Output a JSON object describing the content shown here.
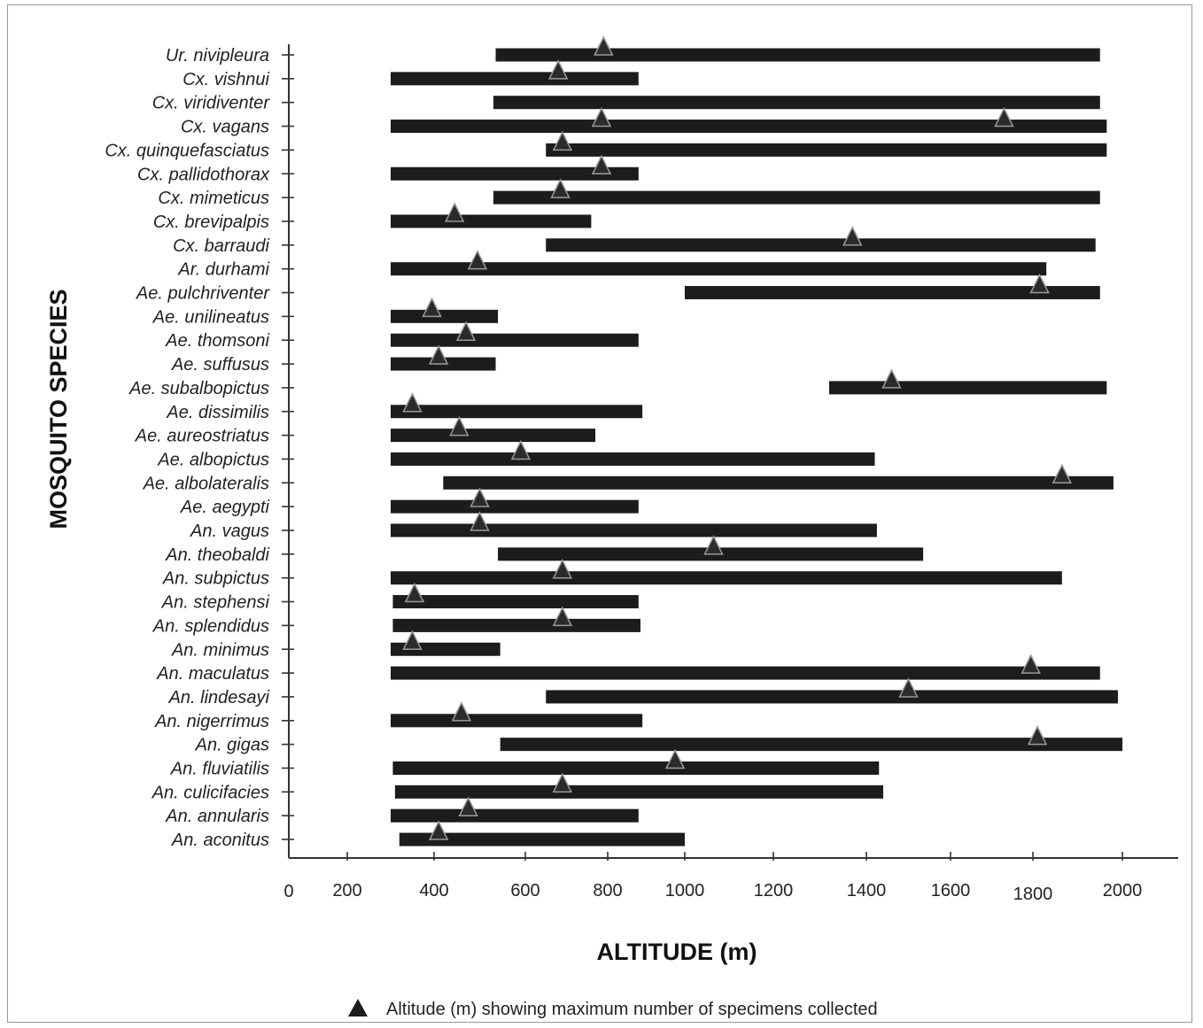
{
  "chart_data": {
    "type": "range-bar",
    "xlabel": "ALTITUDE (m)",
    "ylabel": "MOSQUITO SPECIES",
    "x_ticks": [
      0,
      200,
      400,
      600,
      800,
      1000,
      1200,
      1400,
      1600,
      1800,
      2000
    ],
    "legend": {
      "symbol": "triangle",
      "label": "Altitude (m) showing maximum number of specimens collected",
      "position": "bottom"
    },
    "colors": {
      "bar": "#1c1c1c",
      "marker": "#2b2b2b",
      "axis": "#333333"
    },
    "series": [
      {
        "species": "Ur. nivipleura",
        "min": 535,
        "max": 1950,
        "peaks": [
          790
        ]
      },
      {
        "species": "Cx. vishnui",
        "min": 300,
        "max": 880,
        "peaks": [
          680
        ]
      },
      {
        "species": "Cx. viridiventer",
        "min": 530,
        "max": 1950,
        "peaks": []
      },
      {
        "species": "Cx. vagans",
        "min": 300,
        "max": 1965,
        "peaks": [
          785,
          1730
        ]
      },
      {
        "species": "Cx. quinquefasciatus",
        "min": 650,
        "max": 1965,
        "peaks": [
          690
        ]
      },
      {
        "species": "Cx. pallidothorax",
        "min": 300,
        "max": 880,
        "peaks": [
          785
        ]
      },
      {
        "species": "Cx. mimeticus",
        "min": 530,
        "max": 1950,
        "peaks": [
          685
        ]
      },
      {
        "species": "Cx. brevipalpis",
        "min": 300,
        "max": 760,
        "peaks": [
          445
        ]
      },
      {
        "species": "Cx. barraudi",
        "min": 650,
        "max": 1940,
        "peaks": [
          1370
        ]
      },
      {
        "species": "Ar. durhami",
        "min": 300,
        "max": 1830,
        "peaks": [
          495
        ]
      },
      {
        "species": "Ae. pulchriventer",
        "min": 1000,
        "max": 1950,
        "peaks": [
          1815
        ]
      },
      {
        "species": "Ae. unilineatus",
        "min": 300,
        "max": 540,
        "peaks": [
          395
        ]
      },
      {
        "species": "Ae. thomsoni",
        "min": 300,
        "max": 880,
        "peaks": [
          470
        ]
      },
      {
        "species": "Ae. suffusus",
        "min": 300,
        "max": 535,
        "peaks": [
          410
        ]
      },
      {
        "species": "Ae. subalbopictus",
        "min": 1320,
        "max": 1965,
        "peaks": [
          1460
        ]
      },
      {
        "species": "Ae. dissimilis",
        "min": 300,
        "max": 890,
        "peaks": [
          350
        ]
      },
      {
        "species": "Ae. aureostriatus",
        "min": 300,
        "max": 770,
        "peaks": [
          455
        ]
      },
      {
        "species": "Ae. albopictus",
        "min": 300,
        "max": 1420,
        "peaks": [
          590
        ]
      },
      {
        "species": "Ae. albolateralis",
        "min": 420,
        "max": 1980,
        "peaks": [
          1865
        ]
      },
      {
        "species": "Ae. aegypti",
        "min": 300,
        "max": 880,
        "peaks": [
          500
        ]
      },
      {
        "species": "An. vagus",
        "min": 300,
        "max": 1425,
        "peaks": [
          500
        ]
      },
      {
        "species": "An. theobaldi",
        "min": 540,
        "max": 1535,
        "peaks": [
          1065
        ]
      },
      {
        "species": "An. subpictus",
        "min": 300,
        "max": 1865,
        "peaks": [
          690
        ]
      },
      {
        "species": "An. stephensi",
        "min": 305,
        "max": 880,
        "peaks": [
          355
        ]
      },
      {
        "species": "An. splendidus",
        "min": 305,
        "max": 885,
        "peaks": [
          690
        ]
      },
      {
        "species": "An. minimus",
        "min": 300,
        "max": 545,
        "peaks": [
          350
        ]
      },
      {
        "species": "An. maculatus",
        "min": 300,
        "max": 1950,
        "peaks": [
          1795
        ]
      },
      {
        "species": "An. lindesayi",
        "min": 650,
        "max": 1990,
        "peaks": [
          1500
        ]
      },
      {
        "species": "An. nigerrimus",
        "min": 300,
        "max": 890,
        "peaks": [
          460
        ]
      },
      {
        "species": "An. gigas",
        "min": 545,
        "max": 2000,
        "peaks": [
          1810
        ]
      },
      {
        "species": "An. fluviatilis",
        "min": 305,
        "max": 1430,
        "peaks": [
          975
        ]
      },
      {
        "species": "An. culicifacies",
        "min": 310,
        "max": 1440,
        "peaks": [
          690
        ]
      },
      {
        "species": "An. annularis",
        "min": 300,
        "max": 880,
        "peaks": [
          475
        ]
      },
      {
        "species": "An. aconitus",
        "min": 320,
        "max": 1000,
        "peaks": [
          410
        ]
      }
    ]
  }
}
